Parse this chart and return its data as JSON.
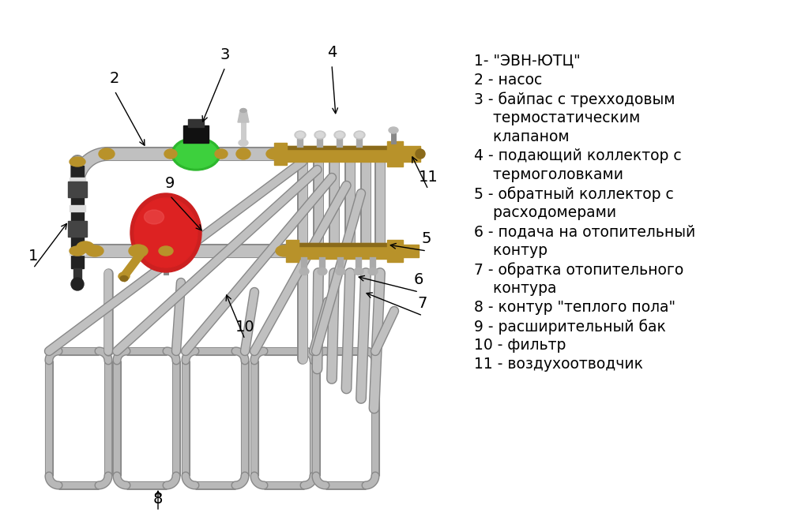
{
  "bg_color": "#ffffff",
  "legend_lines": [
    "1- \"ЭВН-ЮТЦ\"",
    "2 - насос",
    "3 - байпас с трехходовым",
    "    термостатическим",
    "    клапаном",
    "4 - подающий коллектор с",
    "    термоголовками",
    "5 - обратный коллектор с",
    "    расходомерами",
    "6 - подача на отопительный",
    "    контур",
    "7 - обратка отопительного",
    "    контура",
    "8 - контур \"теплого пола\"",
    "9 - расширительный бак",
    "10 - фильтр",
    "11 - воздухоотводчик"
  ],
  "pipe_col": "#c0c0c0",
  "pipe_border": "#888888",
  "brass_col": "#b8922a",
  "brass_dark": "#8a6a1a",
  "green_col": "#2db82d",
  "green_dark": "#1a7a1a",
  "red_col": "#cc2020",
  "black_col": "#111111",
  "loop_col": "#b8b8b8",
  "loop_border": "#888888",
  "label_fontsize": 13.5,
  "number_fontsize": 14
}
